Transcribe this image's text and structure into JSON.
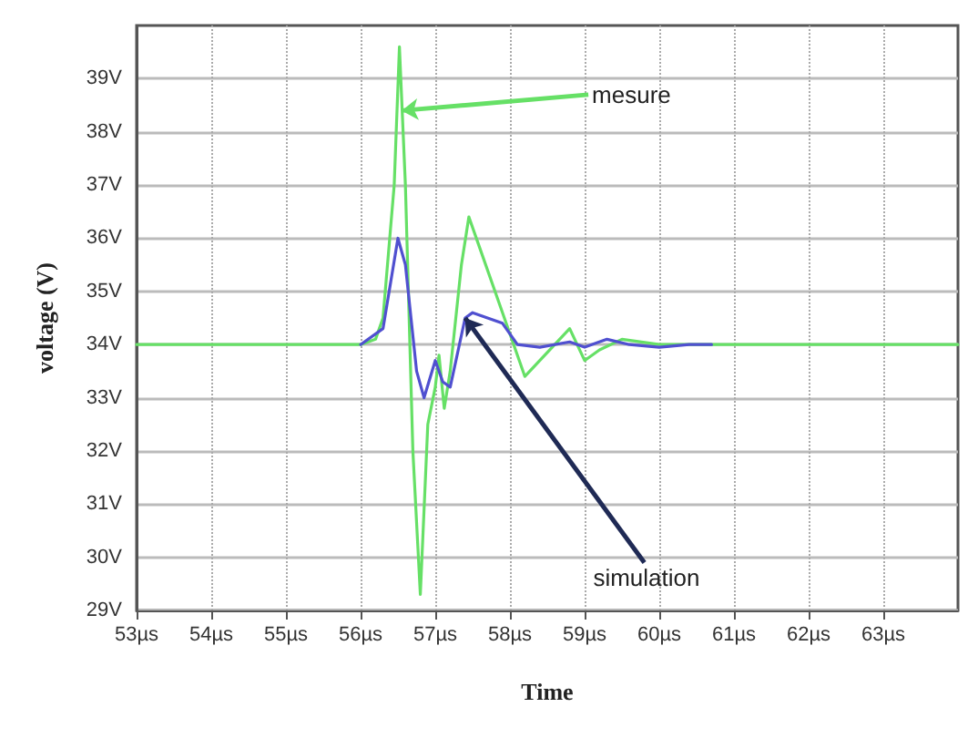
{
  "chart_data": {
    "type": "line",
    "xlabel": "Time",
    "ylabel": "voltage (V)",
    "grid": true,
    "marker": "none",
    "line_style": "solid",
    "xlim": [
      53,
      64
    ],
    "xticks": [
      {
        "value": 53,
        "label": "53µs"
      },
      {
        "value": 54,
        "label": "54µs"
      },
      {
        "value": 55,
        "label": "55µs"
      },
      {
        "value": 56,
        "label": "56µs"
      },
      {
        "value": 57,
        "label": "57µs"
      },
      {
        "value": 58,
        "label": "58µs"
      },
      {
        "value": 59,
        "label": "59µs"
      },
      {
        "value": 60,
        "label": "60µs"
      },
      {
        "value": 61,
        "label": "61µs"
      },
      {
        "value": 62,
        "label": "62µs"
      },
      {
        "value": 63,
        "label": "63µs"
      }
    ],
    "ylim": [
      29,
      40
    ],
    "yticks": [
      {
        "value": 29,
        "label": "29V"
      },
      {
        "value": 30,
        "label": "30V"
      },
      {
        "value": 31,
        "label": "31V"
      },
      {
        "value": 32,
        "label": "32V"
      },
      {
        "value": 33,
        "label": "33V"
      },
      {
        "value": 34,
        "label": "34V"
      },
      {
        "value": 35,
        "label": "35V"
      },
      {
        "value": 36,
        "label": "36V"
      },
      {
        "value": 37,
        "label": "37V"
      },
      {
        "value": 38,
        "label": "38V"
      },
      {
        "value": 39,
        "label": "39V"
      }
    ],
    "series": [
      {
        "color": "#66e066",
        "x": [
          53,
          56,
          56.2,
          56.3,
          56.45,
          56.52,
          56.6,
          56.7,
          56.8,
          56.9,
          57,
          57.05,
          57.12,
          57.2,
          57.35,
          57.45,
          57.6,
          57.8,
          58,
          58.2,
          58.4,
          58.6,
          58.8,
          59,
          59.2,
          59.5,
          60,
          64
        ],
        "values": [
          34,
          34,
          34.1,
          34.5,
          37,
          39.6,
          37,
          32,
          29.3,
          32.5,
          33.2,
          33.8,
          32.8,
          33.5,
          35.5,
          36.4,
          35.8,
          35,
          34.2,
          33.4,
          33.7,
          34,
          34.3,
          33.7,
          33.9,
          34.1,
          34,
          34
        ]
      },
      {
        "color": "#5050d0",
        "x": [
          56,
          56.3,
          56.5,
          56.6,
          56.75,
          56.85,
          57,
          57.1,
          57.2,
          57.4,
          57.5,
          57.7,
          57.9,
          58.1,
          58.4,
          58.8,
          59,
          59.3,
          59.6,
          60,
          60.4,
          60.7
        ],
        "values": [
          34,
          34.3,
          36,
          35.5,
          33.5,
          33,
          33.7,
          33.3,
          33.2,
          34.5,
          34.6,
          34.5,
          34.4,
          34,
          33.95,
          34.05,
          33.95,
          34.1,
          34,
          33.95,
          34,
          34
        ]
      }
    ],
    "annotations": [
      {
        "text": "mesure",
        "x": 56.55,
        "y": 38.4
      },
      {
        "text": "simulation",
        "x": 57.4,
        "y": 34.5
      }
    ]
  }
}
